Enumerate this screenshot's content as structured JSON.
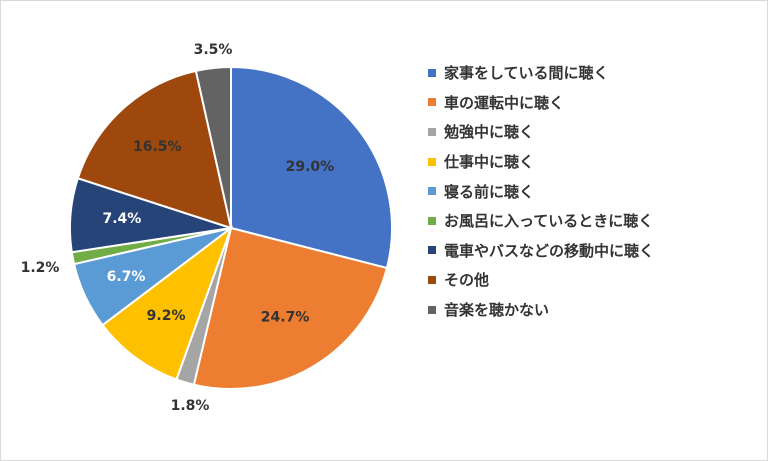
{
  "chart_data": {
    "type": "pie",
    "title": "",
    "legend_position": "right",
    "categories": [
      "家事をしている間に聴く",
      "車の運転中に聴く",
      "勉強中に聴く",
      "仕事中に聴く",
      "寝る前に聴く",
      "お風呂に入っているときに聴く",
      "電車やバスなどの移動中に聴く",
      "その他",
      "音楽を聴かない"
    ],
    "values": [
      29.0,
      24.7,
      1.8,
      9.2,
      6.7,
      1.2,
      7.4,
      16.5,
      3.5
    ],
    "data_labels": [
      "29.0%",
      "24.7%",
      "1.8%",
      "9.2%",
      "6.7%",
      "1.2%",
      "7.4%",
      "16.5%",
      "3.5%"
    ],
    "colors": [
      "#4472C4",
      "#ED7D31",
      "#A5A5A5",
      "#FFC000",
      "#5B9BD5",
      "#70AD47",
      "#264478",
      "#9E480E",
      "#636363"
    ],
    "label_colors": [
      "#333333",
      "#333333",
      "#333333",
      "#333333",
      "#ffffff",
      "#333333",
      "#ffffff",
      "#333333",
      "#333333"
    ]
  }
}
